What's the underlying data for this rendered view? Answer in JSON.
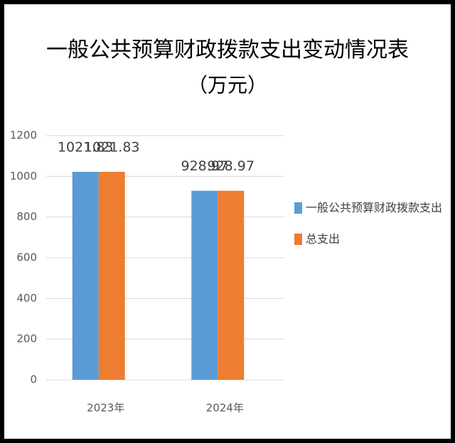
{
  "chart_data": {
    "type": "bar",
    "title": "一般公共预算财政拨款支出变动情况表",
    "subtitle": "（万元）",
    "categories": [
      "2023年",
      "2024年"
    ],
    "series": [
      {
        "name": "一般公共预算财政拨款支出",
        "color": "#5b9bd5",
        "values": [
          1021.83,
          928.97
        ]
      },
      {
        "name": "总支出",
        "color": "#ed7d31",
        "values": [
          1021.83,
          928.97
        ]
      }
    ],
    "ylim": [
      0,
      1200
    ],
    "yticks": [
      0,
      200,
      400,
      600,
      800,
      1000,
      1200
    ],
    "grid": true,
    "legend": "right"
  }
}
